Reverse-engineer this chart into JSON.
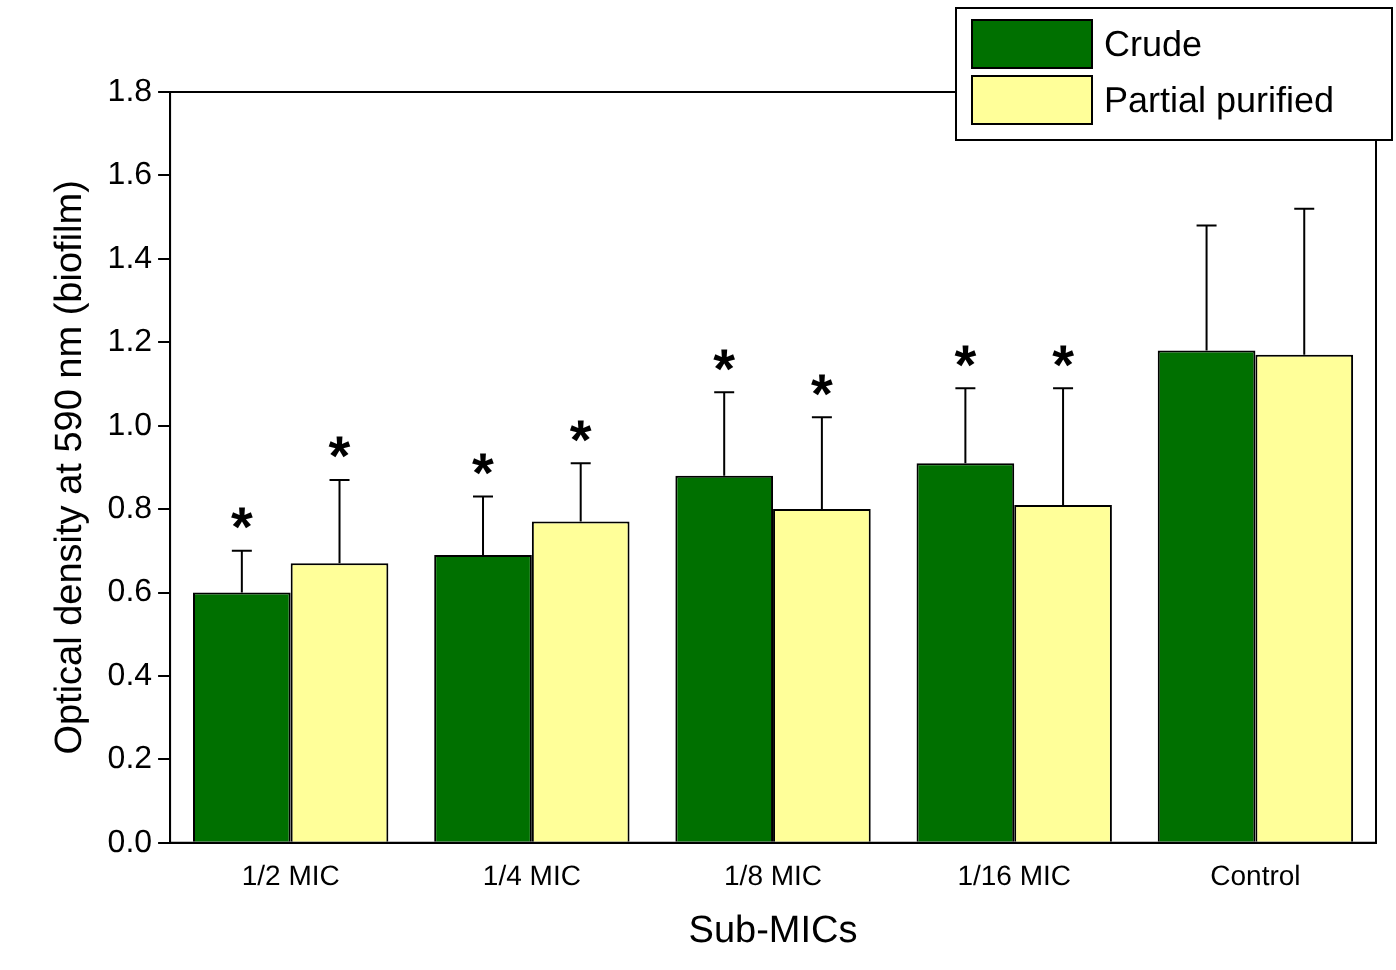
{
  "chart_data": {
    "type": "bar",
    "xlabel": "Sub-MICs",
    "ylabel": "Optical density at 590 nm (biofilm)",
    "categories": [
      "1/2 MIC",
      "1/4 MIC",
      "1/8 MIC",
      "1/16 MIC",
      "Control"
    ],
    "series": [
      {
        "name": "Crude",
        "color": "#007000",
        "values": [
          0.6,
          0.69,
          0.88,
          0.91,
          1.18
        ],
        "errors": [
          [
            0.6,
            0.7
          ],
          [
            0.69,
            0.83
          ],
          [
            0.88,
            1.08
          ],
          [
            0.91,
            1.09
          ],
          [
            1.18,
            1.48
          ]
        ]
      },
      {
        "name": "Partial purified",
        "color": "#ffff99",
        "values": [
          0.67,
          0.77,
          0.8,
          0.81,
          1.17
        ],
        "errors": [
          [
            0.67,
            0.87
          ],
          [
            0.77,
            0.91
          ],
          [
            0.8,
            1.02
          ],
          [
            0.81,
            1.09
          ],
          [
            1.17,
            1.52
          ]
        ]
      }
    ],
    "ylim": [
      0,
      1.8
    ],
    "yticks": [
      {
        "value": 0,
        "label": "0.0"
      },
      {
        "value": 0.2,
        "label": "0.2"
      },
      {
        "value": 0.4,
        "label": "0.4"
      },
      {
        "value": 0.6,
        "label": "0.6"
      },
      {
        "value": 0.8,
        "label": "0.8"
      },
      {
        "value": 1.0,
        "label": "1.0"
      },
      {
        "value": 1.2,
        "label": "1.2"
      },
      {
        "value": 1.4,
        "label": "1.4"
      },
      {
        "value": 1.6,
        "label": "1.6"
      },
      {
        "value": 1.8,
        "label": "1.8"
      }
    ],
    "annotations": [
      "*",
      "*",
      "*",
      "*",
      "*",
      "*",
      "*",
      "*"
    ],
    "legend": "top right",
    "grid": false
  }
}
